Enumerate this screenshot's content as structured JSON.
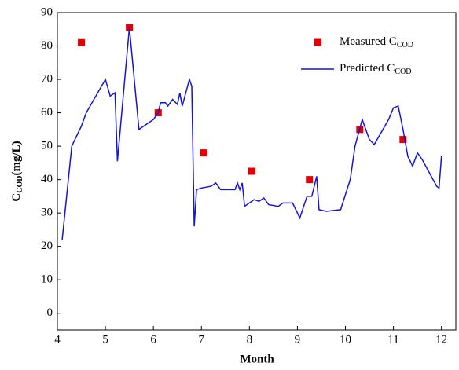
{
  "chart_data": {
    "type": "line",
    "x_label": "Month",
    "y_label": "C",
    "y_label_subscript": "COD",
    "y_label_suffix": "(mg/L)",
    "xlim": [
      4,
      12.3
    ],
    "xticks": [
      4,
      5,
      6,
      7,
      8,
      9,
      10,
      11,
      12
    ],
    "ylim": [
      -5,
      90
    ],
    "yticks": [
      0,
      10,
      20,
      30,
      40,
      50,
      60,
      70,
      80,
      90
    ],
    "legend": "upper right",
    "series": [
      {
        "name": "Measured C",
        "name_subscript": "COD",
        "color": "#e60000",
        "marker": "square",
        "x": [
          4.5,
          5.5,
          6.1,
          7.05,
          8.05,
          9.25,
          10.3,
          11.2
        ],
        "values": [
          81,
          85.5,
          60,
          48,
          42.5,
          40,
          55,
          52
        ]
      },
      {
        "name": "Predicted C",
        "name_subscript": "COD",
        "color": "#1414d2",
        "marker": "line",
        "x": [
          4.1,
          4.3,
          4.5,
          4.6,
          5.0,
          5.1,
          5.2,
          5.25,
          5.5,
          5.7,
          6.0,
          6.1,
          6.15,
          6.25,
          6.3,
          6.4,
          6.5,
          6.55,
          6.6,
          6.75,
          6.8,
          6.85,
          6.9,
          7.0,
          7.2,
          7.3,
          7.4,
          7.7,
          7.75,
          7.8,
          7.85,
          7.9,
          8.0,
          8.1,
          8.2,
          8.3,
          8.4,
          8.6,
          8.7,
          8.9,
          9.05,
          9.2,
          9.3,
          9.4,
          9.45,
          9.6,
          9.9,
          10.1,
          10.2,
          10.35,
          10.5,
          10.6,
          10.9,
          11.0,
          11.1,
          11.2,
          11.3,
          11.4,
          11.5,
          11.6,
          11.9,
          11.95,
          12.0
        ],
        "values": [
          22,
          50,
          56,
          60,
          70,
          65,
          66,
          45.5,
          85.5,
          55,
          58,
          60,
          63,
          63,
          62,
          64,
          62.5,
          66,
          62,
          70,
          68,
          26,
          37,
          37.5,
          38,
          39,
          37,
          37,
          39,
          37,
          39,
          32,
          33,
          34,
          33.5,
          34.5,
          32.5,
          32,
          33,
          33,
          28.5,
          35,
          35,
          41,
          31,
          30.5,
          31,
          40,
          50,
          58,
          52,
          50.5,
          58,
          61.5,
          62,
          55,
          47,
          44,
          48,
          46,
          38,
          37.5,
          47
        ]
      }
    ]
  }
}
